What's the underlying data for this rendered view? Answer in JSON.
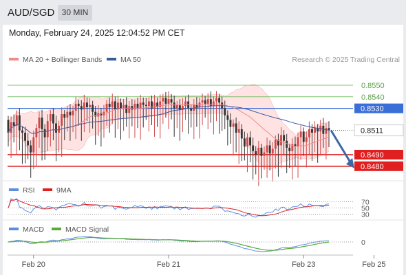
{
  "header": {
    "pair": "AUD/SGD",
    "timeframe": "30 MIN",
    "datetime": "Monday, February 24, 2025 12:04:52 PM CET"
  },
  "legend": {
    "bollinger": "MA 20 + Bollinger Bands",
    "ma50": "MA 50",
    "credit": "Research © 2025 Trading Central",
    "rsi": "RSI",
    "ma9": "9MA",
    "macd": "MACD",
    "macd_signal": "MACD Signal"
  },
  "colors": {
    "up": "#d04848",
    "down": "#333333",
    "bollinger": "#f08b8b",
    "bollinger_fill": "#ffe0e0",
    "ma50": "#3d5a9e",
    "resistance": "#7cc06a",
    "pivot": "#3a6fd8",
    "support": "#e02020",
    "arrow": "#3d68a6",
    "rsi": "#5b8de0",
    "ma9": "#e02020",
    "macd": "#5b8de0",
    "macd_signal": "#5aaa3a"
  },
  "chart_data": {
    "type": "candlestick",
    "ylim": [
      0.8468,
      0.8566
    ],
    "x_ticks": [
      {
        "label": "Feb 20",
        "index": 9
      },
      {
        "label": "Feb 21",
        "index": 57
      },
      {
        "label": "Feb 23",
        "index": 105
      },
      {
        "label": "Feb 25",
        "index": 130
      }
    ],
    "levels": [
      {
        "value": 0.855,
        "label": "0.8550",
        "kind": "resistance"
      },
      {
        "value": 0.854,
        "label": "0.8540",
        "kind": "resistance"
      },
      {
        "value": 0.853,
        "label": "0.8530",
        "kind": "pivot"
      },
      {
        "value": 0.849,
        "label": "0.8490",
        "kind": "support"
      },
      {
        "value": 0.848,
        "label": "0.8480",
        "kind": "support"
      }
    ],
    "last_price": {
      "value": 0.8511,
      "label": "0.8511"
    },
    "forecast": {
      "from": 0.8511,
      "to": 0.848
    },
    "candles": [
      [
        0.852,
        0.8509
      ],
      [
        0.8509,
        0.8518
      ],
      [
        0.8518,
        0.8515
      ],
      [
        0.8515,
        0.8524
      ],
      [
        0.8524,
        0.8511
      ],
      [
        0.8511,
        0.8509
      ],
      [
        0.8509,
        0.8502
      ],
      [
        0.8502,
        0.8498
      ],
      [
        0.8498,
        0.8492
      ],
      [
        0.8492,
        0.8505
      ],
      [
        0.8505,
        0.8513
      ],
      [
        0.8513,
        0.8522
      ],
      [
        0.8522,
        0.8512
      ],
      [
        0.8512,
        0.8505
      ],
      [
        0.8505,
        0.8519
      ],
      [
        0.8519,
        0.8525
      ],
      [
        0.8525,
        0.8517
      ],
      [
        0.8517,
        0.8509
      ],
      [
        0.8509,
        0.8515
      ],
      [
        0.8515,
        0.8525
      ],
      [
        0.8525,
        0.8522
      ],
      [
        0.8522,
        0.8527
      ],
      [
        0.8527,
        0.8524
      ],
      [
        0.8524,
        0.8528
      ],
      [
        0.8528,
        0.8534
      ],
      [
        0.8534,
        0.8532
      ],
      [
        0.8532,
        0.8529
      ],
      [
        0.8529,
        0.8535
      ],
      [
        0.8535,
        0.8531
      ],
      [
        0.8531,
        0.8533
      ],
      [
        0.8533,
        0.8527
      ],
      [
        0.8527,
        0.8523
      ],
      [
        0.8523,
        0.8526
      ],
      [
        0.8526,
        0.8524
      ],
      [
        0.8524,
        0.8527
      ],
      [
        0.8527,
        0.8534
      ],
      [
        0.8534,
        0.8531
      ],
      [
        0.8531,
        0.8536
      ],
      [
        0.8536,
        0.8529
      ],
      [
        0.8529,
        0.8535
      ],
      [
        0.8535,
        0.853
      ],
      [
        0.853,
        0.8533
      ],
      [
        0.8533,
        0.8526
      ],
      [
        0.8526,
        0.8532
      ],
      [
        0.8532,
        0.8529
      ],
      [
        0.8529,
        0.8534
      ],
      [
        0.8534,
        0.853
      ],
      [
        0.853,
        0.8535
      ],
      [
        0.8535,
        0.8533
      ],
      [
        0.8533,
        0.8532
      ],
      [
        0.8532,
        0.8536
      ],
      [
        0.8536,
        0.853
      ],
      [
        0.853,
        0.8535
      ],
      [
        0.8535,
        0.8531
      ],
      [
        0.8531,
        0.8536
      ],
      [
        0.8536,
        0.8539
      ],
      [
        0.8539,
        0.8534
      ],
      [
        0.8534,
        0.8538
      ],
      [
        0.8538,
        0.8535
      ],
      [
        0.8535,
        0.853
      ],
      [
        0.853,
        0.8533
      ],
      [
        0.8533,
        0.8529
      ],
      [
        0.8529,
        0.8532
      ],
      [
        0.8532,
        0.8536
      ],
      [
        0.8536,
        0.853
      ],
      [
        0.853,
        0.8528
      ],
      [
        0.8528,
        0.8533
      ],
      [
        0.8533,
        0.8531
      ],
      [
        0.8531,
        0.8535
      ],
      [
        0.8535,
        0.8537
      ],
      [
        0.8537,
        0.8534
      ],
      [
        0.8534,
        0.8538
      ],
      [
        0.8538,
        0.8532
      ],
      [
        0.8532,
        0.8536
      ],
      [
        0.8536,
        0.8539
      ],
      [
        0.8539,
        0.8535
      ],
      [
        0.8535,
        0.853
      ],
      [
        0.853,
        0.8524
      ],
      [
        0.8524,
        0.852
      ],
      [
        0.852,
        0.8514
      ],
      [
        0.8514,
        0.8517
      ],
      [
        0.8517,
        0.8509
      ],
      [
        0.8509,
        0.8512
      ],
      [
        0.8512,
        0.8504
      ],
      [
        0.8504,
        0.8497
      ],
      [
        0.8497,
        0.8505
      ],
      [
        0.8505,
        0.8498
      ],
      [
        0.8498,
        0.8493
      ],
      [
        0.8493,
        0.849
      ],
      [
        0.849,
        0.8496
      ],
      [
        0.8496,
        0.8489
      ],
      [
        0.8489,
        0.8492
      ],
      [
        0.8492,
        0.8498
      ],
      [
        0.8498,
        0.8491
      ],
      [
        0.8491,
        0.8495
      ],
      [
        0.8495,
        0.8503
      ],
      [
        0.8503,
        0.8498
      ],
      [
        0.8498,
        0.8507
      ],
      [
        0.8507,
        0.8502
      ],
      [
        0.8502,
        0.8496
      ],
      [
        0.8496,
        0.8493
      ],
      [
        0.8493,
        0.8499
      ],
      [
        0.8499,
        0.8497
      ],
      [
        0.8497,
        0.8505
      ],
      [
        0.8505,
        0.851
      ],
      [
        0.851,
        0.8501
      ],
      [
        0.8501,
        0.8505
      ],
      [
        0.8505,
        0.8512
      ],
      [
        0.8512,
        0.8509
      ],
      [
        0.8509,
        0.8513
      ],
      [
        0.8513,
        0.851
      ],
      [
        0.851,
        0.8515
      ],
      [
        0.8515,
        0.8508
      ],
      [
        0.8508,
        0.8513
      ],
      [
        0.8513,
        0.8511
      ]
    ],
    "rsi": {
      "levels": [
        70,
        50,
        30
      ],
      "ylim": [
        20,
        80
      ]
    },
    "macd": {
      "zero_label": "0"
    }
  }
}
